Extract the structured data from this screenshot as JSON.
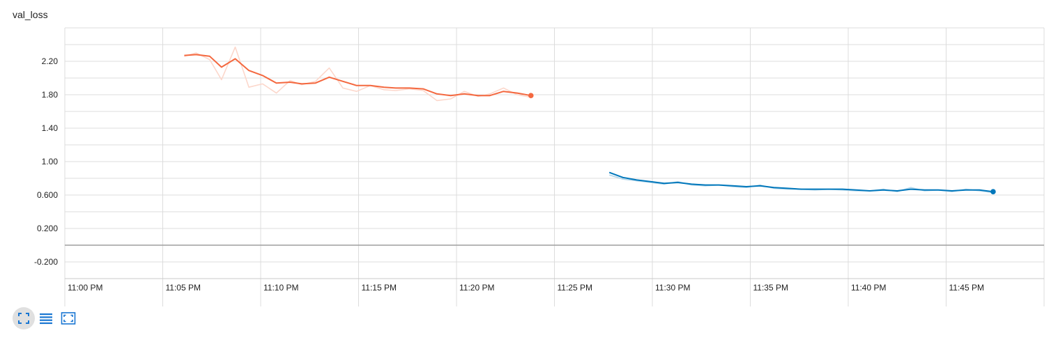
{
  "chart_data": {
    "type": "line",
    "title": "val_loss",
    "xlabel": "",
    "ylabel": "",
    "x_axis_type": "time",
    "xlim": [
      "11:00 PM",
      "11:50 PM"
    ],
    "x_tick_labels": [
      "11:00 PM",
      "11:05 PM",
      "11:10 PM",
      "11:15 PM",
      "11:20 PM",
      "11:25 PM",
      "11:30 PM",
      "11:35 PM",
      "11:40 PM",
      "11:45 PM"
    ],
    "x_tick_minutes": [
      0,
      5,
      10,
      15,
      20,
      25,
      30,
      35,
      40,
      45
    ],
    "ylim": [
      -0.4,
      2.6
    ],
    "y_tick_values": [
      -0.2,
      0.2,
      0.6,
      1.0,
      1.4,
      1.8,
      2.2
    ],
    "y_tick_labels": [
      "-0.200",
      "0.200",
      "0.600",
      "1.00",
      "1.40",
      "1.80",
      "2.20"
    ],
    "grid": true,
    "legend": "none",
    "series": [
      {
        "color": "#f4683f",
        "raw_color": "#fcd7cb",
        "x_minutes": [
          6.1,
          6.7,
          7.4,
          8.0,
          8.7,
          9.4,
          10.1,
          10.8,
          11.5,
          12.1,
          12.8,
          13.5,
          14.2,
          14.9,
          15.6,
          16.3,
          16.9,
          17.6,
          18.3,
          19.0,
          19.7,
          20.4,
          21.1,
          21.7,
          22.4,
          23.1,
          23.8
        ],
        "smoothed": [
          2.27,
          2.28,
          2.26,
          2.13,
          2.23,
          2.09,
          2.03,
          1.94,
          1.95,
          1.93,
          1.94,
          2.01,
          1.96,
          1.91,
          1.91,
          1.89,
          1.88,
          1.88,
          1.87,
          1.81,
          1.79,
          1.81,
          1.79,
          1.79,
          1.84,
          1.82,
          1.79
        ],
        "raw": [
          2.26,
          2.3,
          2.22,
          1.98,
          2.37,
          1.89,
          1.93,
          1.82,
          1.97,
          1.92,
          1.96,
          2.12,
          1.88,
          1.84,
          1.91,
          1.86,
          1.85,
          1.87,
          1.85,
          1.73,
          1.75,
          1.84,
          1.78,
          1.81,
          1.88,
          1.8,
          1.77
        ]
      },
      {
        "color": "#0077bb",
        "raw_color": "#b3d6ea",
        "x_minutes": [
          27.8,
          28.5,
          29.2,
          29.9,
          30.6,
          31.3,
          32.0,
          32.7,
          33.4,
          34.1,
          34.8,
          35.5,
          36.2,
          36.9,
          37.6,
          38.3,
          39.0,
          39.7,
          40.4,
          41.1,
          41.8,
          42.5,
          43.2,
          43.9,
          44.6,
          45.3,
          46.0,
          46.7,
          47.4
        ],
        "smoothed": [
          0.87,
          0.81,
          0.78,
          0.76,
          0.74,
          0.75,
          0.73,
          0.72,
          0.72,
          0.71,
          0.7,
          0.71,
          0.69,
          0.68,
          0.67,
          0.67,
          0.67,
          0.67,
          0.66,
          0.65,
          0.66,
          0.65,
          0.67,
          0.66,
          0.66,
          0.65,
          0.66,
          0.66,
          0.64
        ],
        "raw": [
          0.84,
          0.79,
          0.77,
          0.75,
          0.73,
          0.76,
          0.72,
          0.71,
          0.72,
          0.7,
          0.69,
          0.72,
          0.68,
          0.67,
          0.67,
          0.66,
          0.67,
          0.66,
          0.65,
          0.65,
          0.67,
          0.64,
          0.69,
          0.65,
          0.66,
          0.64,
          0.67,
          0.65,
          0.63
        ]
      }
    ]
  },
  "toolbar": {
    "buttons": [
      {
        "icon": "fullscreen-icon",
        "active": true,
        "color": "#1976d2"
      },
      {
        "icon": "list-icon",
        "active": false,
        "color": "#1976d2"
      },
      {
        "icon": "fit-domain-icon",
        "active": false,
        "color": "#1976d2"
      }
    ]
  }
}
